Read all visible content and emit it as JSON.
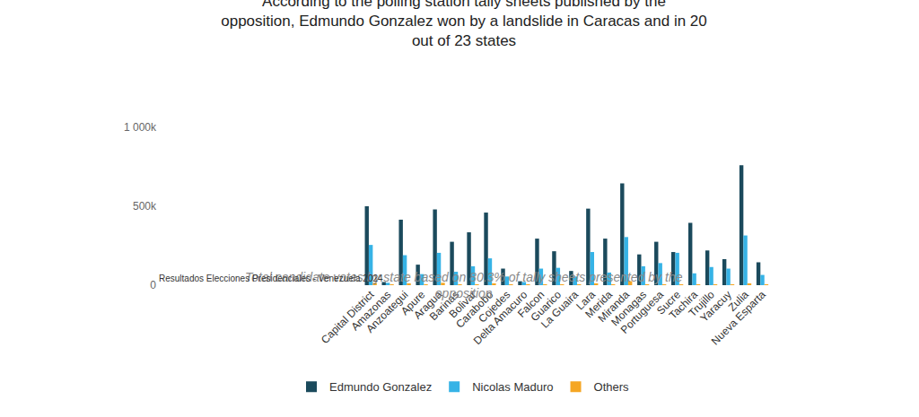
{
  "chart_data": {
    "type": "bar",
    "title": "According to the polling station tally sheets published by the opposition, Edmundo Gonzalez won by a landslide in Caracas and in 20 out of 23 states",
    "subtitle": "Total candidate votes by state based on 80.3% of tally sheets presented by the opposition",
    "annotations": [
      "Resultados Elecciones Presidenciales - Venezuela 2024"
    ],
    "categories": [
      "Capital District",
      "Amazonas",
      "Anzoategui",
      "Apure",
      "Aragua",
      "Barinas",
      "Bolivar",
      "Carabobo",
      "Cojedes",
      "Delta Amacuro",
      "Falcon",
      "Guarico",
      "La Guaira",
      "Lara",
      "Merida",
      "Miranda",
      "Monagas",
      "Portuguesa",
      "Sucre",
      "Tachira",
      "Trujillo",
      "Yaracuy",
      "Zulia",
      "Nueva Esparta"
    ],
    "series": [
      {
        "name": "Edmundo Gonzalez",
        "color": "#1b4a5c",
        "values": [
          500000,
          20000,
          415000,
          130000,
          480000,
          275000,
          335000,
          460000,
          105000,
          25000,
          295000,
          215000,
          90000,
          485000,
          295000,
          645000,
          195000,
          275000,
          210000,
          395000,
          220000,
          165000,
          760000,
          145000
        ]
      },
      {
        "name": "Nicolas Maduro",
        "color": "#36b3e6",
        "values": [
          255000,
          15000,
          190000,
          70000,
          205000,
          85000,
          120000,
          170000,
          55000,
          20000,
          105000,
          110000,
          55000,
          210000,
          80000,
          305000,
          120000,
          140000,
          205000,
          75000,
          115000,
          105000,
          315000,
          65000
        ]
      },
      {
        "name": "Others",
        "color": "#f5a623",
        "values": [
          15000,
          1000,
          10000,
          2000,
          15000,
          3000,
          5000,
          10000,
          2000,
          1000,
          3000,
          3000,
          2000,
          10000,
          3000,
          25000,
          3000,
          5000,
          3000,
          3000,
          2000,
          2000,
          8000,
          3000
        ]
      }
    ],
    "ylim": [
      0,
      1000000
    ],
    "yticks": [
      0,
      {
        "value": 500000,
        "label": "500k"
      },
      {
        "value": 1000000,
        "label": "1 000k"
      }
    ],
    "grid": false,
    "legend": "bottom"
  }
}
